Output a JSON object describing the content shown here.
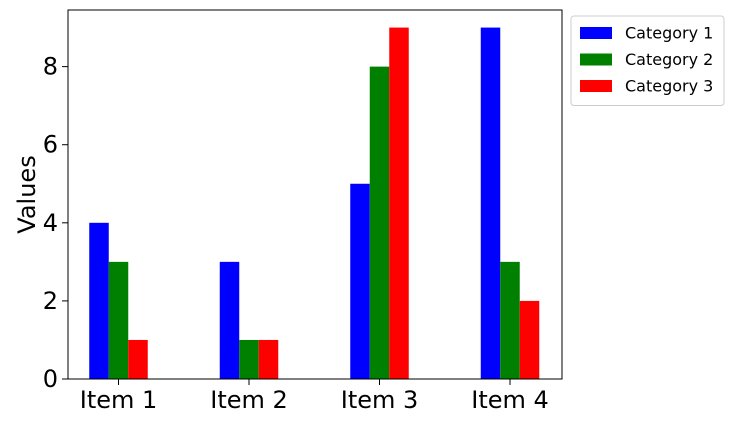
{
  "chart_data": {
    "type": "bar",
    "categories": [
      "Item 1",
      "Item 2",
      "Item 3",
      "Item 4"
    ],
    "series": [
      {
        "name": "Category 1",
        "color": "#0000ff",
        "values": [
          4,
          3,
          5,
          9
        ]
      },
      {
        "name": "Category 2",
        "color": "#008000",
        "values": [
          3,
          1,
          8,
          3
        ]
      },
      {
        "name": "Category 3",
        "color": "#ff0000",
        "values": [
          1,
          1,
          9,
          2
        ]
      }
    ],
    "title": "",
    "xlabel": "",
    "ylabel": "Values",
    "ylim": [
      0,
      9.45
    ],
    "yticks": [
      0,
      2,
      4,
      6,
      8
    ],
    "grid": false,
    "legend_position": "outside-top-right"
  }
}
